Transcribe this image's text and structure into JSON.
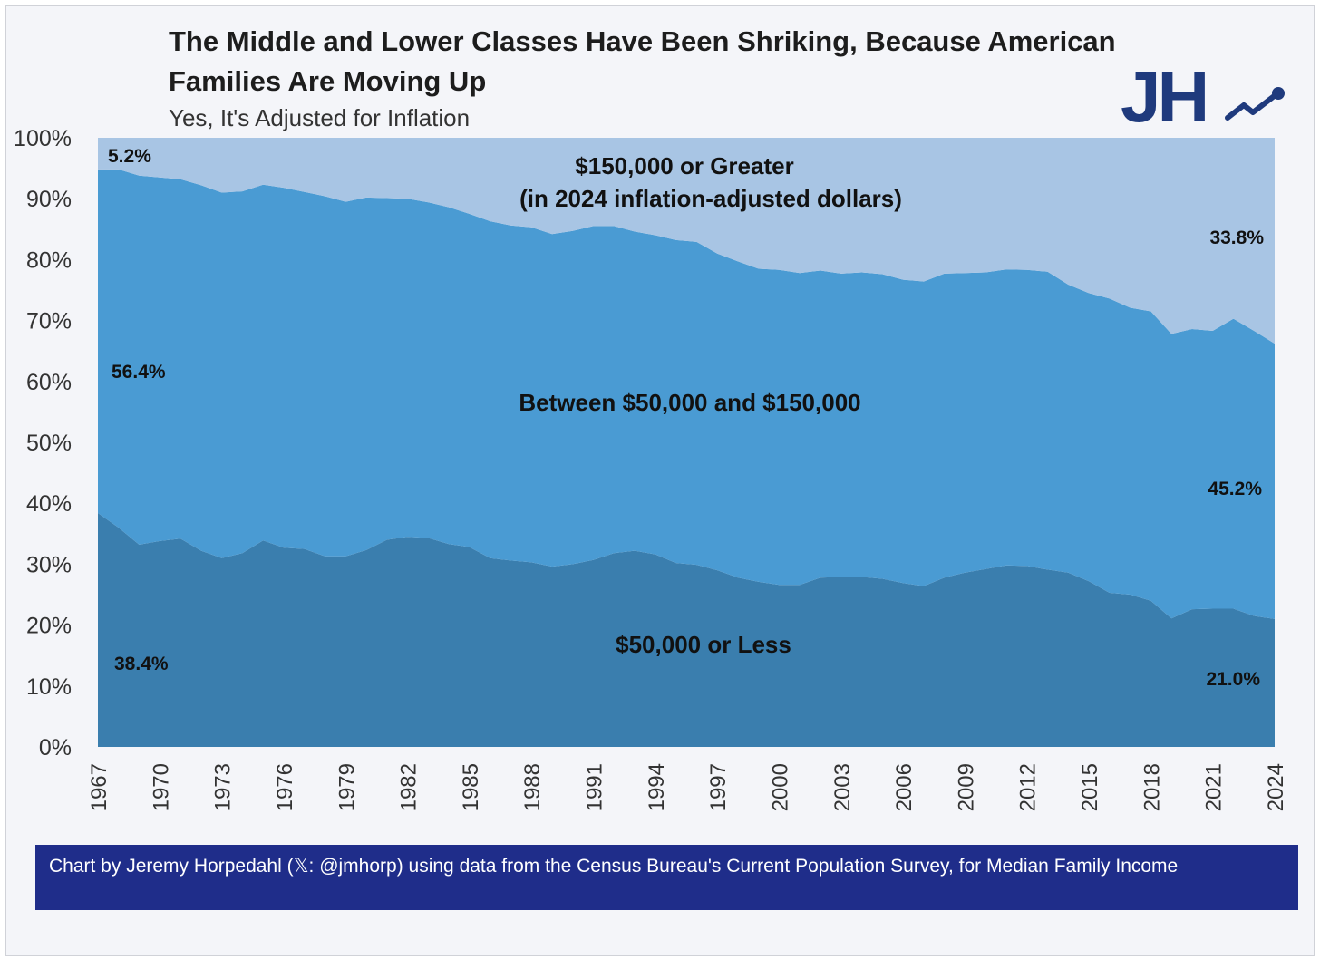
{
  "title": "The Middle and Lower Classes Have Been Shriking, Because American Families Are Moving Up",
  "subtitle": "Yes, It's Adjusted for Inflation",
  "logo_text": "JH",
  "footer": "Chart by Jeremy Horpedahl (𝕏: @jmhorp) using data from the Census Bureau's Current Population Survey, for Median Family Income",
  "chart_data": {
    "type": "area",
    "stacked": true,
    "x": [
      1967,
      1968,
      1969,
      1970,
      1971,
      1972,
      1973,
      1974,
      1975,
      1976,
      1977,
      1978,
      1979,
      1980,
      1981,
      1982,
      1983,
      1984,
      1985,
      1986,
      1987,
      1988,
      1989,
      1990,
      1991,
      1992,
      1993,
      1994,
      1995,
      1996,
      1997,
      1998,
      1999,
      2000,
      2001,
      2002,
      2003,
      2004,
      2005,
      2006,
      2007,
      2008,
      2009,
      2010,
      2011,
      2012,
      2013,
      2014,
      2015,
      2016,
      2017,
      2018,
      2019,
      2020,
      2021,
      2022,
      2023,
      2024
    ],
    "series": [
      {
        "name": "$50,000 or Less",
        "color": "#3a7eae",
        "values": [
          38.4,
          36.0,
          33.2,
          33.8,
          34.2,
          32.2,
          31.0,
          31.8,
          33.9,
          32.7,
          32.5,
          31.3,
          31.3,
          32.3,
          34.0,
          34.5,
          34.3,
          33.3,
          32.8,
          31.0,
          30.6,
          30.3,
          29.6,
          30.0,
          30.7,
          31.8,
          32.2,
          31.6,
          30.2,
          29.9,
          29.0,
          27.8,
          27.1,
          26.6,
          26.6,
          27.8,
          27.9,
          27.9,
          27.6,
          26.9,
          26.4,
          27.8,
          28.6,
          29.2,
          29.8,
          29.7,
          29.1,
          28.6,
          27.2,
          25.3,
          25.0,
          24.0,
          21.1,
          22.6,
          22.7,
          22.7,
          21.5,
          21.0
        ]
      },
      {
        "name": "Between $50,000 and $150,000",
        "color": "#4a9bd3",
        "values": [
          56.4,
          58.8,
          60.6,
          59.7,
          59.0,
          60.0,
          60.0,
          59.4,
          58.4,
          59.1,
          58.6,
          59.1,
          58.2,
          57.9,
          56.1,
          55.5,
          55.1,
          55.3,
          54.7,
          55.3,
          55.0,
          55.0,
          54.6,
          54.7,
          54.8,
          53.7,
          52.4,
          52.4,
          53.0,
          53.0,
          52.0,
          51.9,
          51.4,
          51.7,
          51.2,
          50.4,
          49.8,
          50.0,
          50.0,
          49.8,
          50.0,
          49.9,
          49.2,
          48.7,
          48.6,
          48.6,
          48.9,
          47.3,
          47.3,
          48.3,
          47.1,
          47.5,
          46.7,
          46.0,
          45.6,
          47.6,
          46.8,
          45.2
        ]
      },
      {
        "name": "$150,000 or Greater",
        "color": "#a8c5e4",
        "values": [
          5.2,
          5.2,
          6.2,
          6.5,
          6.8,
          7.8,
          9.0,
          8.8,
          7.7,
          8.2,
          8.9,
          9.6,
          10.5,
          9.8,
          9.9,
          10.0,
          10.6,
          11.4,
          12.5,
          13.7,
          14.4,
          14.7,
          15.8,
          15.3,
          14.5,
          14.5,
          15.4,
          16.0,
          16.8,
          17.1,
          19.0,
          20.3,
          21.5,
          21.7,
          22.2,
          21.8,
          22.3,
          22.1,
          22.4,
          23.3,
          23.6,
          22.3,
          22.2,
          22.1,
          21.6,
          21.7,
          22.0,
          24.1,
          25.5,
          26.4,
          27.9,
          28.5,
          32.2,
          31.4,
          31.7,
          29.7,
          31.7,
          33.8
        ]
      }
    ],
    "region_labels": {
      "top_line1": "$150,000 or Greater",
      "top_line2": "(in 2024 inflation-adjusted dollars)",
      "middle": "Between $50,000 and $150,000",
      "bottom": "$50,000 or Less"
    },
    "value_labels": {
      "top_start": "5.2%",
      "top_end": "33.8%",
      "middle_start": "56.4%",
      "middle_end": "45.2%",
      "bottom_start": "38.4%",
      "bottom_end": "21.0%"
    },
    "ylim": [
      0,
      100
    ],
    "yticks": [
      "0%",
      "10%",
      "20%",
      "30%",
      "40%",
      "50%",
      "60%",
      "70%",
      "80%",
      "90%",
      "100%"
    ],
    "xticks": [
      "1967",
      "1970",
      "1973",
      "1976",
      "1979",
      "1982",
      "1985",
      "1988",
      "1991",
      "1994",
      "1997",
      "2000",
      "2003",
      "2006",
      "2009",
      "2012",
      "2015",
      "2018",
      "2021",
      "2024"
    ],
    "grid": false,
    "legend": "none"
  }
}
